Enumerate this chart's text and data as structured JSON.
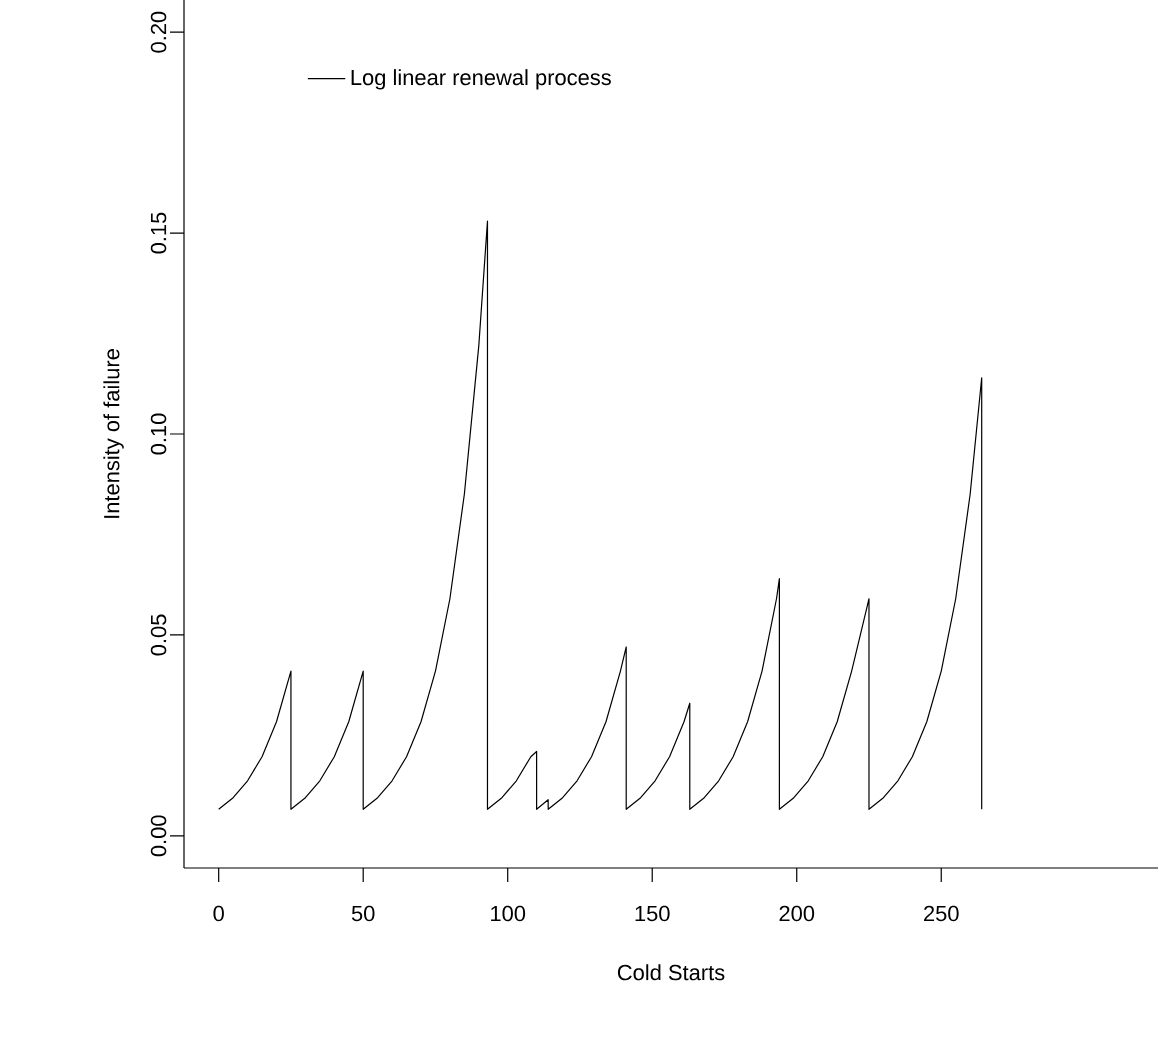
{
  "chart_data": {
    "type": "line",
    "xlabel": "Cold Starts",
    "ylabel": "Intensity of failure",
    "xlim": [
      -12,
      325
    ],
    "ylim": [
      -0.008,
      0.208
    ],
    "xticks": [
      0,
      50,
      100,
      150,
      200,
      250
    ],
    "yticks": [
      {
        "value": 0,
        "label": "0.00"
      },
      {
        "value": 0.05,
        "label": "0.05"
      },
      {
        "value": 0.1,
        "label": "0.10"
      },
      {
        "value": 0.15,
        "label": "0.15"
      },
      {
        "value": 0.2,
        "label": "0.20"
      }
    ],
    "grid": false,
    "legend": "top left",
    "marker": "none",
    "line_style": "solid",
    "series": [
      {
        "name": "Log linear renewal process",
        "color": "#000000",
        "x": [
          0,
          5,
          10,
          15,
          20,
          25,
          25,
          30,
          35,
          40,
          45,
          50,
          50,
          55,
          60,
          65,
          70,
          75,
          80,
          85,
          90,
          93,
          93,
          98,
          103,
          108,
          110,
          110,
          114,
          114,
          119,
          124,
          129,
          134,
          139,
          141,
          141,
          146,
          151,
          156,
          161,
          163,
          163,
          168,
          173,
          178,
          183,
          188,
          193,
          194,
          194,
          199,
          204,
          209,
          214,
          219,
          224,
          225,
          225,
          230,
          235,
          240,
          245,
          250,
          255,
          260,
          264,
          264
        ],
        "values": [
          0.0066,
          0.0095,
          0.0137,
          0.0197,
          0.0284,
          0.041,
          0.0066,
          0.0095,
          0.0137,
          0.0197,
          0.0284,
          0.041,
          0.0066,
          0.0095,
          0.0137,
          0.0197,
          0.0284,
          0.041,
          0.059,
          0.085,
          0.122,
          0.153,
          0.0066,
          0.0095,
          0.0137,
          0.0197,
          0.021,
          0.0066,
          0.009,
          0.0066,
          0.0095,
          0.0137,
          0.0197,
          0.0284,
          0.041,
          0.047,
          0.0066,
          0.0095,
          0.0137,
          0.0197,
          0.0284,
          0.033,
          0.0066,
          0.0095,
          0.0137,
          0.0197,
          0.0284,
          0.041,
          0.059,
          0.064,
          0.0066,
          0.0095,
          0.0137,
          0.0197,
          0.0284,
          0.041,
          0.056,
          0.059,
          0.0066,
          0.0095,
          0.0137,
          0.0197,
          0.0284,
          0.041,
          0.059,
          0.085,
          0.114,
          0.0066
        ]
      }
    ]
  }
}
